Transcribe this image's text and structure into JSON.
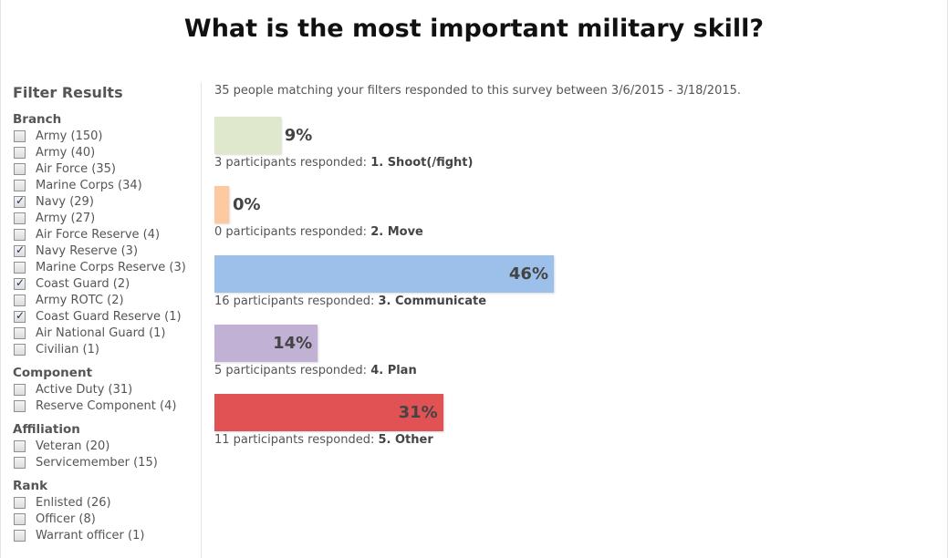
{
  "title": "What is the most important military skill?",
  "sidebar": {
    "heading": "Filter Results",
    "groups": [
      {
        "title": "Branch",
        "options": [
          {
            "label": "Army (150)",
            "checked": false
          },
          {
            "label": "Army (40)",
            "checked": false
          },
          {
            "label": "Air Force (35)",
            "checked": false
          },
          {
            "label": "Marine Corps (34)",
            "checked": false
          },
          {
            "label": "Navy (29)",
            "checked": true
          },
          {
            "label": "Army (27)",
            "checked": false
          },
          {
            "label": "Air Force Reserve (4)",
            "checked": false
          },
          {
            "label": "Navy Reserve (3)",
            "checked": true
          },
          {
            "label": "Marine Corps Reserve (3)",
            "checked": false
          },
          {
            "label": "Coast Guard (2)",
            "checked": true
          },
          {
            "label": "Army ROTC (2)",
            "checked": false
          },
          {
            "label": "Coast Guard Reserve (1)",
            "checked": true
          },
          {
            "label": "Air National Guard (1)",
            "checked": false
          },
          {
            "label": "Civilian (1)",
            "checked": false
          }
        ]
      },
      {
        "title": "Component",
        "options": [
          {
            "label": "Active Duty (31)",
            "checked": false
          },
          {
            "label": "Reserve Component (4)",
            "checked": false
          }
        ]
      },
      {
        "title": "Affiliation",
        "options": [
          {
            "label": "Veteran (20)",
            "checked": false
          },
          {
            "label": "Servicemember (15)",
            "checked": false
          }
        ]
      },
      {
        "title": "Rank",
        "options": [
          {
            "label": "Enlisted (26)",
            "checked": false
          },
          {
            "label": "Officer (8)",
            "checked": false
          },
          {
            "label": "Warrant officer (1)",
            "checked": false
          }
        ]
      }
    ]
  },
  "summary": "35 people matching your filters responded to this survey between 3/6/2015 - 3/18/2015.",
  "chart_data": {
    "type": "bar",
    "categories": [
      "1. Shoot(/fight)",
      "2. Move",
      "3. Communicate",
      "4. Plan",
      "5. Other"
    ],
    "values": [
      9,
      0,
      46,
      14,
      31
    ],
    "value_labels": [
      "9%",
      "0%",
      "46%",
      "14%",
      "31%"
    ],
    "counts": [
      3,
      0,
      16,
      5,
      11
    ],
    "captions": [
      "3 participants responded: ",
      "0 participants responded: ",
      "16 participants responded: ",
      "5 participants responded: ",
      "11 participants responded: "
    ],
    "colors": [
      "#dfe8cc",
      "#fcc9a0",
      "#9dc0ea",
      "#c0b1d5",
      "#e05254"
    ]
  }
}
